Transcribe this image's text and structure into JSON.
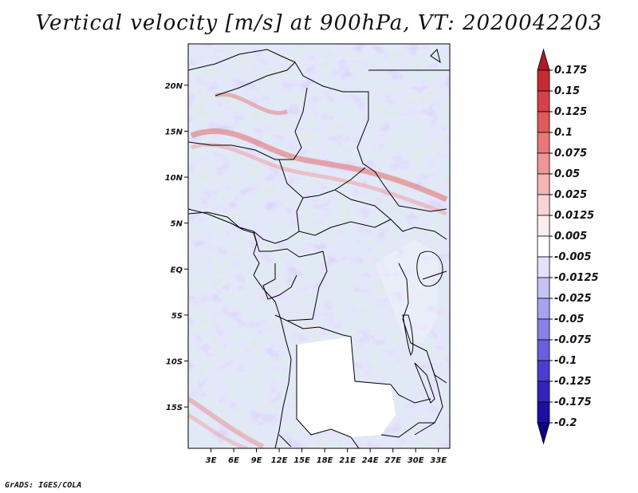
{
  "title": "Vertical velocity [m/s] at 900hPa, VT: 2020042203",
  "map": {
    "lat_labels": [
      "20N",
      "15N",
      "10N",
      "5N",
      "EQ",
      "5S",
      "10S",
      "15S"
    ],
    "lat_values": [
      20,
      15,
      10,
      5,
      0,
      -5,
      -10,
      -15
    ],
    "lon_labels": [
      "3E",
      "6E",
      "9E",
      "12E",
      "15E",
      "18E",
      "21E",
      "24E",
      "27E",
      "30E",
      "33E"
    ],
    "lon_values": [
      3,
      6,
      9,
      12,
      15,
      18,
      21,
      24,
      27,
      30,
      33
    ],
    "lon_range": [
      0,
      34.5
    ],
    "lat_range": [
      -19.5,
      24.5
    ]
  },
  "colorbar": {
    "labels": [
      "0.175",
      "0.15",
      "0.125",
      "0.1",
      "0.075",
      "0.05",
      "0.025",
      "0.0125",
      "0.005",
      "-0.005",
      "-0.0125",
      "-0.025",
      "-0.05",
      "-0.075",
      "-0.1",
      "-0.125",
      "-0.175",
      "-0.2"
    ],
    "colors": [
      "#b2182b",
      "#c62b32",
      "#d6404a",
      "#e05a5a",
      "#e87878",
      "#f09696",
      "#f5b6b6",
      "#fad4d4",
      "#fdeeee",
      "#ffffff",
      "#e4e2fb",
      "#c6c2f4",
      "#a8a2ee",
      "#8a80e6",
      "#6c5ede",
      "#4e3cd0",
      "#3522bf",
      "#1f0e9f",
      "#0c0488"
    ]
  },
  "credit": "GrADS: IGES/COLA"
}
